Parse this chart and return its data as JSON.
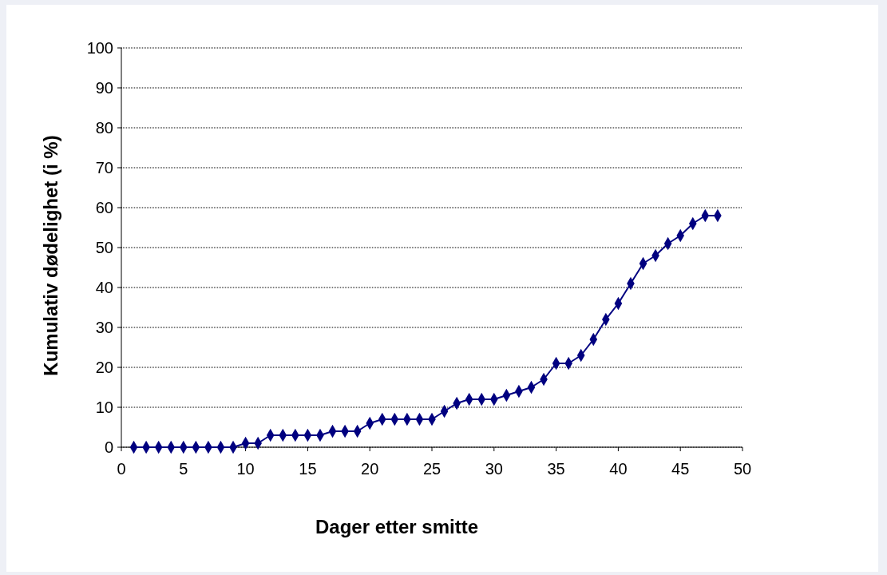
{
  "chart_data": {
    "type": "line",
    "xlabel": "Dager etter smitte",
    "ylabel": "Kumulativ dødelighet (i %)",
    "x": [
      1,
      2,
      3,
      4,
      5,
      6,
      7,
      8,
      9,
      10,
      11,
      12,
      13,
      14,
      15,
      16,
      17,
      18,
      19,
      20,
      21,
      22,
      23,
      24,
      25,
      26,
      27,
      28,
      29,
      30,
      31,
      32,
      33,
      34,
      35,
      36,
      37,
      38,
      39,
      40,
      41,
      42,
      43,
      44,
      45,
      46,
      47,
      48
    ],
    "series": [
      {
        "color": "#000080",
        "values": [
          0,
          0,
          0,
          0,
          0,
          0,
          0,
          0,
          0,
          1,
          1,
          3,
          3,
          3,
          3,
          3,
          4,
          4,
          4,
          6,
          7,
          7,
          7,
          7,
          7,
          9,
          11,
          12,
          12,
          12,
          13,
          14,
          15,
          17,
          21,
          21,
          23,
          27,
          32,
          36,
          41,
          46,
          48,
          51,
          53,
          56,
          58,
          58
        ]
      }
    ],
    "xlim": [
      0,
      50
    ],
    "xticks": [
      0,
      5,
      10,
      15,
      20,
      25,
      30,
      35,
      40,
      45,
      50
    ],
    "ylim": [
      0,
      100
    ],
    "yticks": [
      0,
      10,
      20,
      30,
      40,
      50,
      60,
      70,
      80,
      90,
      100
    ],
    "grid": "y",
    "marker": "diamond",
    "line_style": "solid"
  }
}
